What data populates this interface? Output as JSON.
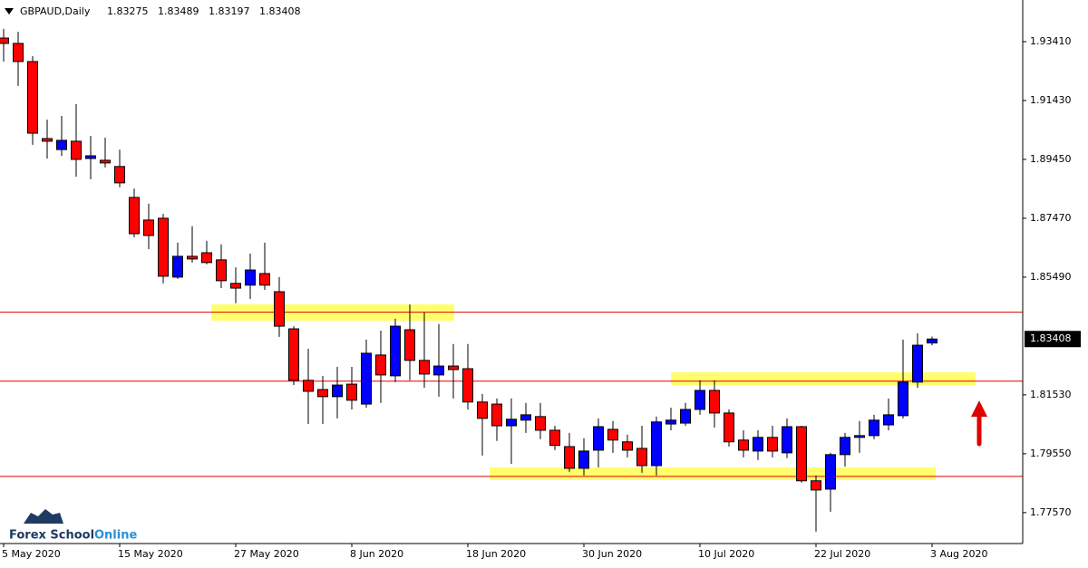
{
  "chart_data": {
    "type": "candlestick",
    "symbol": "GBPAUD,Daily",
    "categories": [
      "5 May 2020",
      null,
      null,
      null,
      null,
      null,
      null,
      null,
      "15 May 2020",
      null,
      null,
      null,
      null,
      null,
      null,
      null,
      "27 May 2020",
      null,
      null,
      null,
      null,
      null,
      null,
      null,
      "8 Jun 2020",
      null,
      null,
      null,
      null,
      null,
      null,
      null,
      "18 Jun 2020",
      null,
      null,
      null,
      null,
      null,
      null,
      null,
      "30 Jun 2020",
      null,
      null,
      null,
      null,
      null,
      null,
      null,
      "10 Jul 2020",
      null,
      null,
      null,
      null,
      null,
      null,
      null,
      "22 Jul 2020",
      null,
      null,
      null,
      null,
      null,
      null,
      null,
      "3 Aug 2020"
    ],
    "open": [
      1.9353,
      1.9335,
      1.9274,
      1.9015,
      1.8978,
      1.9006,
      1.8948,
      1.8942,
      1.8921,
      1.8817,
      1.8741,
      1.8747,
      1.8549,
      1.8619,
      1.8631,
      1.8607,
      1.8528,
      1.8522,
      1.8561,
      1.85,
      1.8375,
      1.8202,
      1.8171,
      1.8147,
      1.8189,
      1.8122,
      1.8287,
      1.8217,
      1.8372,
      1.8269,
      1.822,
      1.825,
      1.8241,
      1.8129,
      1.8122,
      1.8049,
      1.8068,
      1.808,
      1.8034,
      1.7979,
      1.7906,
      1.7967,
      1.8037,
      1.7995,
      1.7973,
      1.7915,
      1.8055,
      1.8058,
      1.8104,
      1.8168,
      1.8092,
      1.8001,
      1.7964,
      1.801,
      1.7958,
      1.8046,
      1.7864,
      1.7836,
      1.7952,
      1.801,
      1.8016,
      1.8052,
      1.8083,
      1.8196,
      1.83275
    ],
    "high": [
      1.9384,
      1.9374,
      1.9292,
      1.9079,
      1.9091,
      1.9131,
      1.9024,
      1.9018,
      1.8978,
      1.8847,
      1.8796,
      1.8762,
      1.8665,
      1.872,
      1.8671,
      1.8659,
      1.8582,
      1.8628,
      1.8665,
      1.8549,
      1.8384,
      1.8308,
      1.8217,
      1.8247,
      1.8247,
      1.8339,
      1.8369,
      1.8409,
      1.8457,
      1.843,
      1.8391,
      1.8324,
      1.8324,
      1.8156,
      1.8141,
      1.8141,
      1.8126,
      1.8126,
      1.8049,
      1.8025,
      1.8007,
      1.8074,
      1.8065,
      1.8019,
      1.8049,
      1.808,
      1.811,
      1.8126,
      1.8202,
      1.8202,
      1.8104,
      1.8034,
      1.8034,
      1.8049,
      1.8074,
      1.8049,
      1.7882,
      1.7958,
      1.8025,
      1.8065,
      1.8086,
      1.8141,
      1.8339,
      1.836,
      1.83489
    ],
    "low": [
      1.9274,
      1.9192,
      1.8994,
      1.8948,
      1.8957,
      1.8887,
      1.8878,
      1.8918,
      1.8851,
      1.8683,
      1.8643,
      1.8528,
      1.8543,
      1.8598,
      1.8592,
      1.8512,
      1.8461,
      1.8476,
      1.8506,
      1.8348,
      1.8186,
      1.8055,
      1.8055,
      1.8074,
      1.8104,
      1.811,
      1.8126,
      1.8196,
      1.8202,
      1.8177,
      1.8147,
      1.8141,
      1.8104,
      1.7949,
      1.7998,
      1.7921,
      1.8025,
      1.8004,
      1.7967,
      1.7894,
      1.7882,
      1.7909,
      1.7958,
      1.7943,
      1.7891,
      1.7882,
      1.8034,
      1.8049,
      1.8086,
      1.8043,
      1.7979,
      1.7943,
      1.7934,
      1.7943,
      1.794,
      1.7858,
      1.7693,
      1.776,
      1.7912,
      1.7958,
      1.8004,
      1.8034,
      1.8074,
      1.8177,
      1.83197
    ],
    "close": [
      1.9335,
      1.9274,
      1.9033,
      1.9006,
      1.9009,
      1.8945,
      1.8957,
      1.8933,
      1.8866,
      1.8695,
      1.8689,
      1.8552,
      1.8619,
      1.861,
      1.8598,
      1.8537,
      1.8512,
      1.8573,
      1.8522,
      1.8384,
      1.8202,
      1.8165,
      1.8147,
      1.8186,
      1.8135,
      1.8293,
      1.822,
      1.8384,
      1.8269,
      1.8223,
      1.825,
      1.8238,
      1.8129,
      1.8074,
      1.8049,
      1.8071,
      1.8086,
      1.8034,
      1.7983,
      1.7906,
      1.7964,
      1.8046,
      1.8001,
      1.7967,
      1.7915,
      1.8062,
      1.8068,
      1.8104,
      1.8168,
      1.8092,
      1.7995,
      1.7967,
      1.801,
      1.7964,
      1.8046,
      1.7864,
      1.7833,
      1.7952,
      1.801,
      1.8016,
      1.8068,
      1.8086,
      1.8196,
      1.832,
      1.83408
    ],
    "up_color": "#0000ff",
    "down_color": "#ff0000",
    "levels": [
      1.8431,
      1.8199,
      1.7879
    ],
    "level_color": "#e00000",
    "ylim": [
      1.7653,
      1.9481
    ],
    "yticks": [
      {
        "value": 1.9341,
        "label": "1.93410"
      },
      {
        "value": 1.9143,
        "label": "1.91430"
      },
      {
        "value": 1.8945,
        "label": "1.89450"
      },
      {
        "value": 1.8747,
        "label": "1.87470"
      },
      {
        "value": 1.8549,
        "label": "1.85490"
      },
      {
        "value": 1.8153,
        "label": "1.81530"
      },
      {
        "value": 1.7955,
        "label": "1.79550"
      },
      {
        "value": 1.7757,
        "label": "1.77570"
      }
    ],
    "logo": [
      "Forex School",
      "Online"
    ]
  }
}
